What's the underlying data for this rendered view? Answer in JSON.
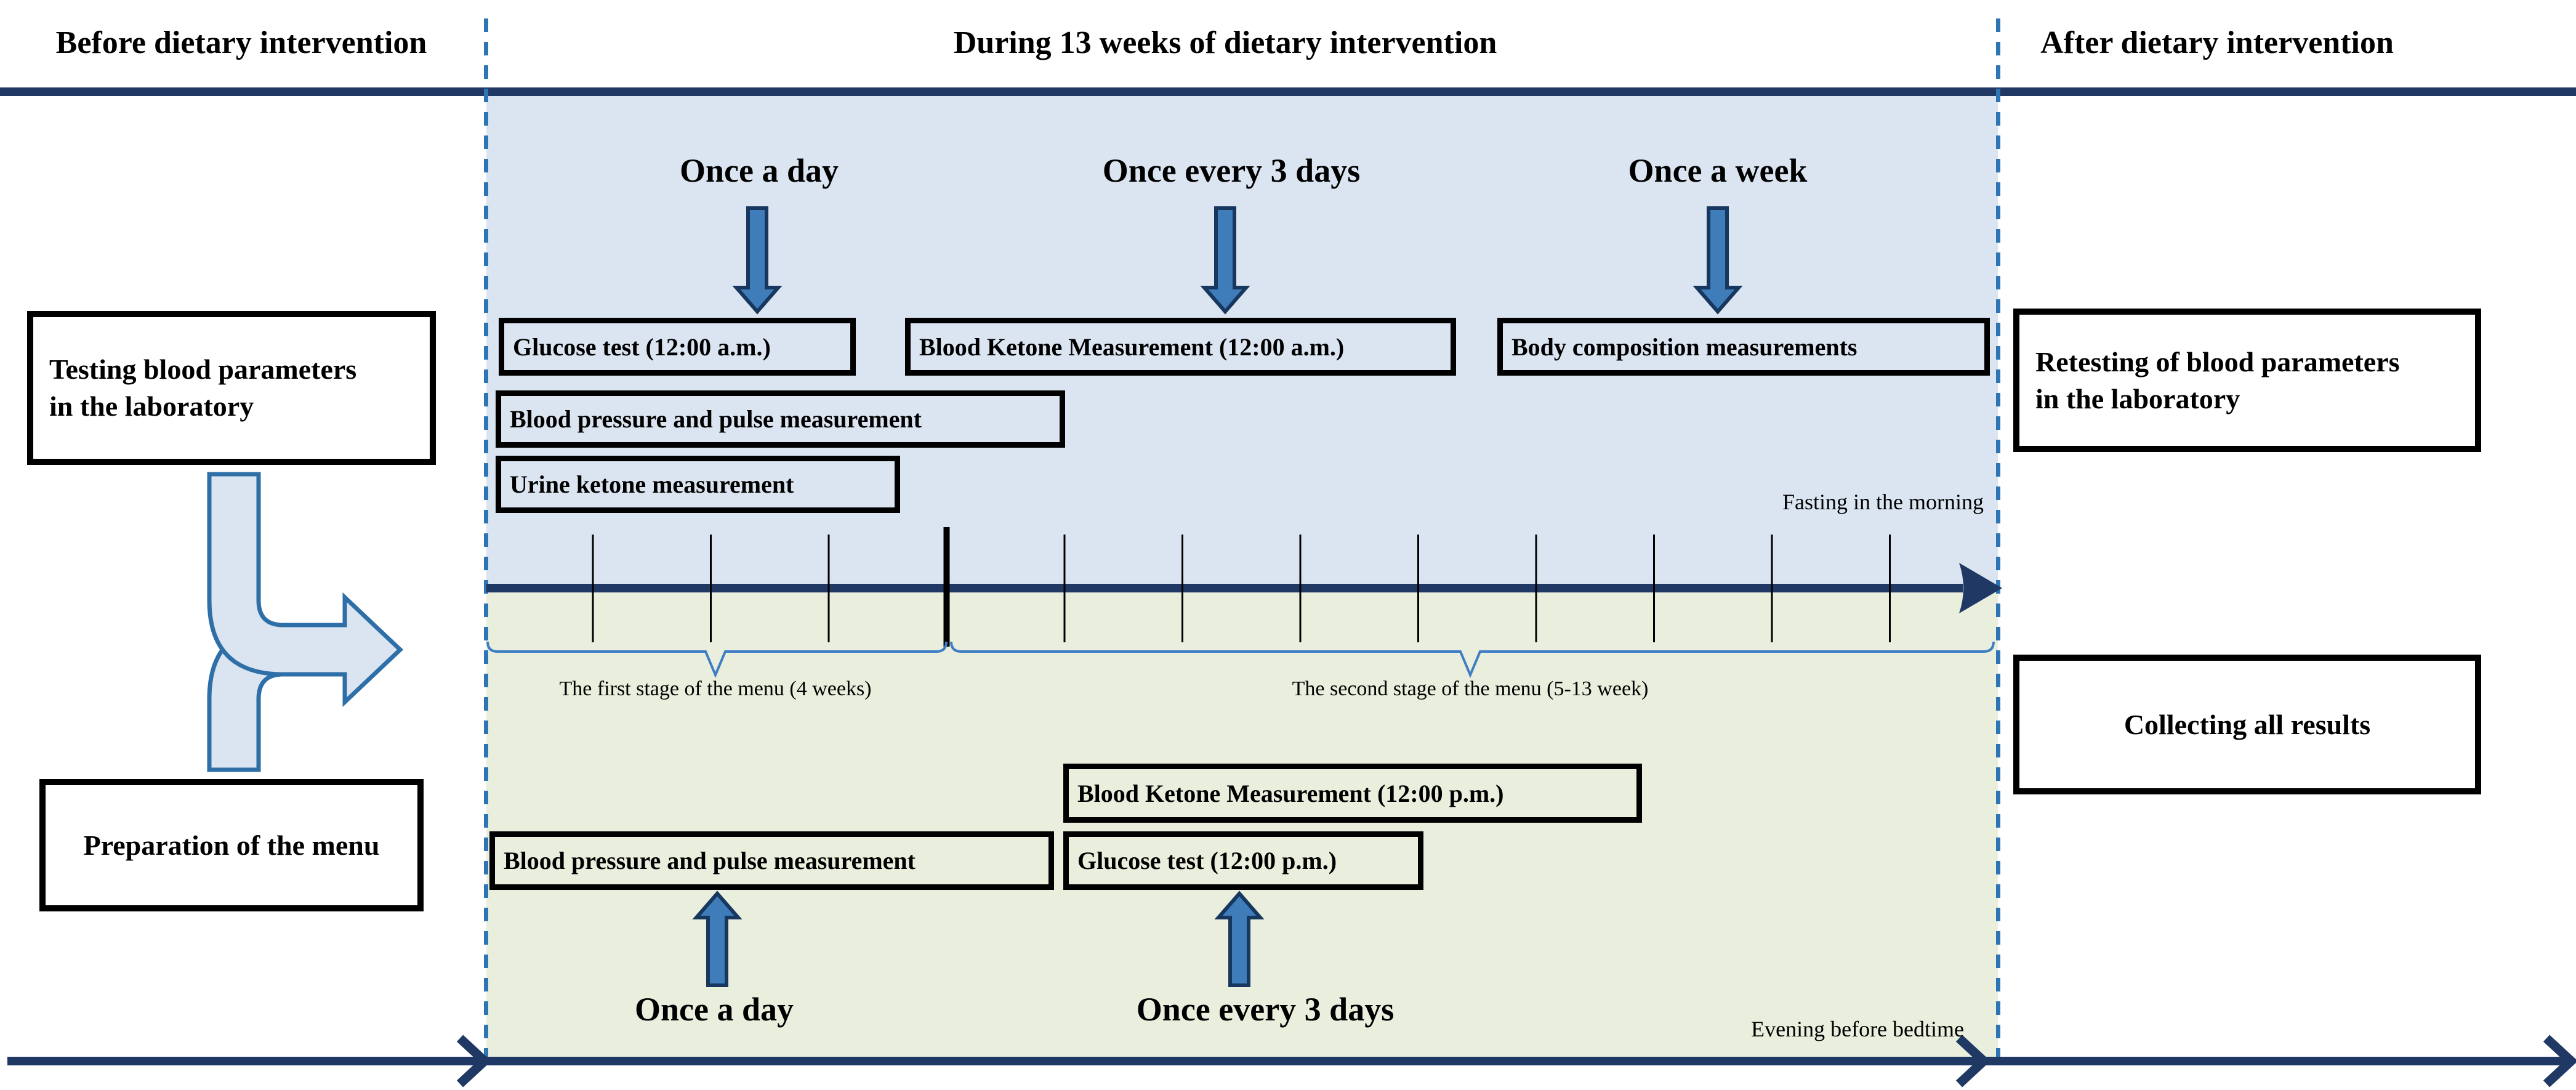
{
  "titles": {
    "before": "Before dietary intervention",
    "during": "During 13 weeks of dietary intervention",
    "after": "After dietary intervention"
  },
  "left_column": {
    "testing_box_line1": "Testing blood parameters",
    "testing_box_line2": "in the laboratory",
    "preparation_box": "Preparation of the menu"
  },
  "right_column": {
    "retesting_box_line1": "Retesting of blood parameters",
    "retesting_box_line2": "in the laboratory",
    "collecting_box": "Collecting all results"
  },
  "morning": {
    "freq_once_a_day": "Once a day",
    "freq_once_every_3_days": "Once every 3 days",
    "freq_once_a_week": "Once a week",
    "glucose_box": "Glucose test (12:00 a.m.)",
    "ketone_box": "Blood Ketone Measurement (12:00 a.m.)",
    "body_comp_box": "Body composition measurements",
    "bp_box": "Blood pressure and pulse measurement",
    "urine_box": "Urine ketone measurement",
    "note": "Fasting in the morning"
  },
  "evening": {
    "ketone_box": "Blood Ketone Measurement (12:00 p.m.)",
    "glucose_box": "Glucose test (12:00 p.m.)",
    "bp_box": "Blood pressure and pulse measurement",
    "freq_once_a_day": "Once a day",
    "freq_once_every_3_days": "Once every 3 days",
    "note": "Evening before bedtime"
  },
  "timeline": {
    "stage1_label": "The first stage of the menu (4 weeks)",
    "stage2_label": "The second stage of the menu (5-13 week)",
    "weeks_total": 13,
    "stage1_weeks": 4
  },
  "colors": {
    "navy": "#1f3864",
    "arrow_fill": "#3e7dba",
    "arrow_stroke": "#17375e",
    "dashed_line": "#2e75b6",
    "brace": "#3f7dc4",
    "panel_blue": "#dbe5f1",
    "panel_green": "#e9eedd",
    "box_border": "#000000"
  }
}
